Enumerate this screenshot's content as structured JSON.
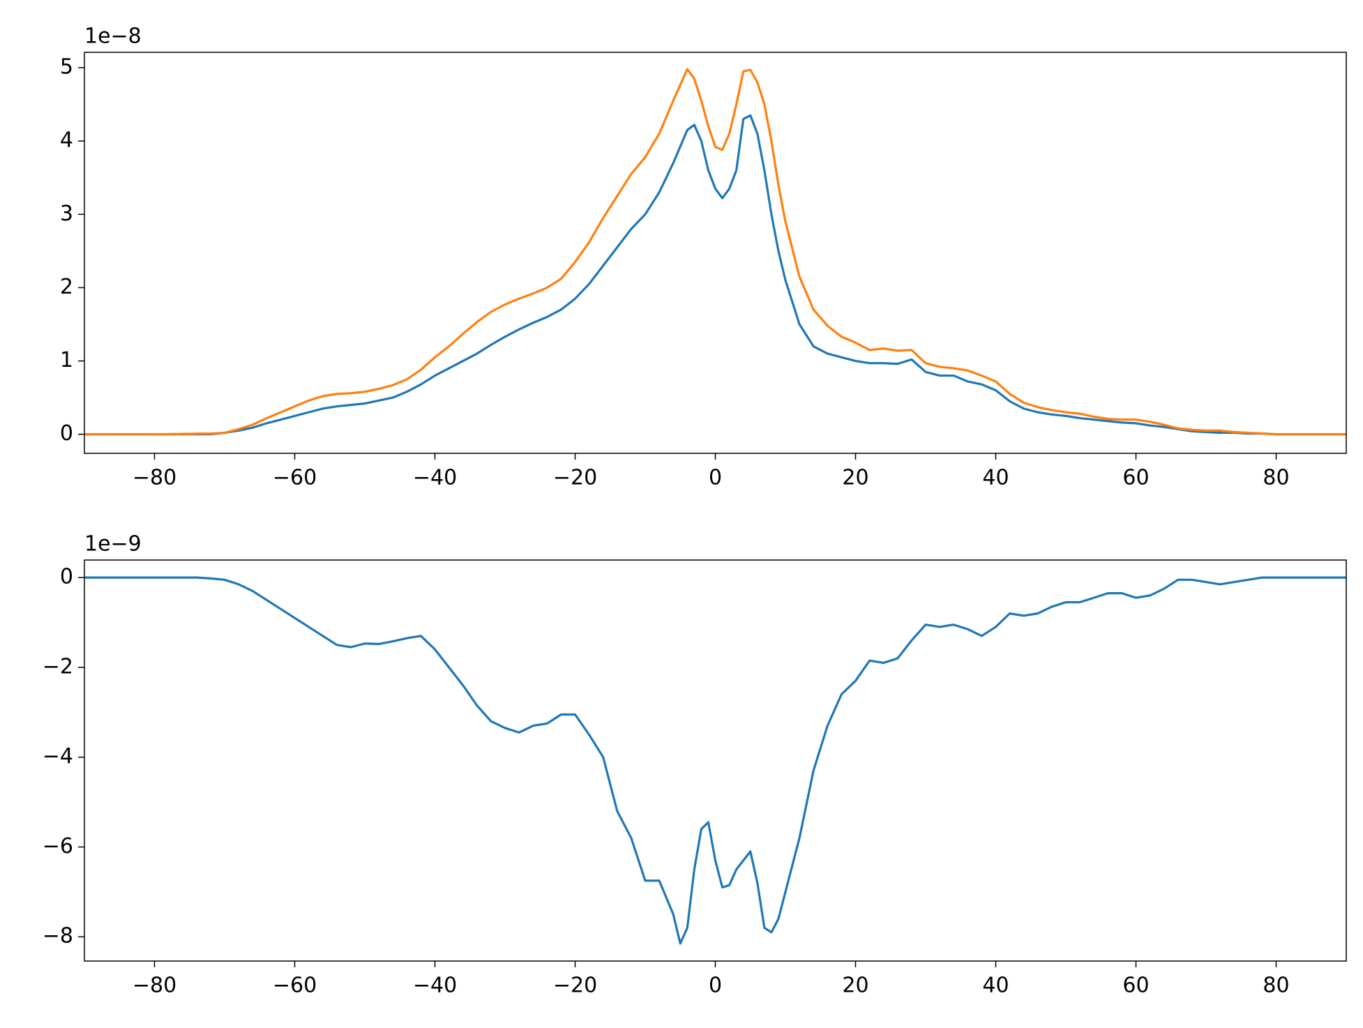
{
  "chart_data": [
    {
      "type": "line",
      "y_offset_label": "1e−8",
      "x": [
        -90,
        -80,
        -72,
        -70,
        -68,
        -66,
        -64,
        -62,
        -60,
        -58,
        -56,
        -54,
        -52,
        -50,
        -48,
        -46,
        -44,
        -42,
        -40,
        -38,
        -36,
        -34,
        -32,
        -30,
        -28,
        -26,
        -24,
        -22,
        -20,
        -18,
        -16,
        -14,
        -12,
        -10,
        -8,
        -6,
        -4,
        -3,
        -2,
        -1,
        0,
        1,
        2,
        3,
        4,
        5,
        6,
        7,
        8,
        9,
        10,
        12,
        14,
        16,
        18,
        20,
        22,
        24,
        26,
        28,
        30,
        32,
        34,
        36,
        38,
        40,
        42,
        44,
        46,
        48,
        50,
        52,
        54,
        56,
        58,
        60,
        62,
        64,
        66,
        68,
        70,
        72,
        74,
        76,
        78,
        80,
        90
      ],
      "series": [
        {
          "color": "#1f77b4",
          "values": [
            0,
            0,
            0,
            0.02,
            0.05,
            0.09,
            0.15,
            0.2,
            0.25,
            0.3,
            0.35,
            0.38,
            0.4,
            0.42,
            0.46,
            0.5,
            0.58,
            0.68,
            0.8,
            0.9,
            1.0,
            1.1,
            1.22,
            1.33,
            1.43,
            1.52,
            1.6,
            1.7,
            1.85,
            2.05,
            2.3,
            2.55,
            2.8,
            3.0,
            3.3,
            3.7,
            4.15,
            4.22,
            4.0,
            3.6,
            3.35,
            3.22,
            3.35,
            3.6,
            4.3,
            4.35,
            4.1,
            3.6,
            3.0,
            2.5,
            2.1,
            1.5,
            1.2,
            1.1,
            1.05,
            1.0,
            0.97,
            0.97,
            0.96,
            1.02,
            0.85,
            0.8,
            0.8,
            0.72,
            0.68,
            0.6,
            0.45,
            0.35,
            0.3,
            0.27,
            0.25,
            0.22,
            0.2,
            0.18,
            0.16,
            0.15,
            0.12,
            0.1,
            0.07,
            0.04,
            0.03,
            0.02,
            0.02,
            0.01,
            0.01,
            0,
            0
          ]
        },
        {
          "color": "#ff7f0e",
          "values": [
            0,
            0,
            0.01,
            0.02,
            0.07,
            0.13,
            0.22,
            0.3,
            0.38,
            0.46,
            0.52,
            0.55,
            0.56,
            0.58,
            0.62,
            0.67,
            0.75,
            0.88,
            1.05,
            1.2,
            1.37,
            1.53,
            1.67,
            1.77,
            1.85,
            1.92,
            2.0,
            2.12,
            2.35,
            2.62,
            2.95,
            3.25,
            3.55,
            3.78,
            4.1,
            4.55,
            4.98,
            4.85,
            4.55,
            4.2,
            3.92,
            3.88,
            4.1,
            4.5,
            4.95,
            4.97,
            4.8,
            4.5,
            4.0,
            3.4,
            2.9,
            2.15,
            1.7,
            1.48,
            1.33,
            1.25,
            1.15,
            1.17,
            1.14,
            1.15,
            0.97,
            0.92,
            0.9,
            0.87,
            0.8,
            0.72,
            0.55,
            0.43,
            0.37,
            0.33,
            0.3,
            0.28,
            0.24,
            0.21,
            0.2,
            0.2,
            0.17,
            0.13,
            0.08,
            0.06,
            0.05,
            0.05,
            0.03,
            0.02,
            0.01,
            0,
            0
          ]
        }
      ],
      "xlim": [
        -90,
        90
      ],
      "xticks": [
        {
          "value": -80,
          "label": "−80"
        },
        {
          "value": -60,
          "label": "−60"
        },
        {
          "value": -40,
          "label": "−40"
        },
        {
          "value": -20,
          "label": "−20"
        },
        0,
        20,
        40,
        60,
        80
      ],
      "ylim": [
        -0.26,
        5.21
      ],
      "yticks": [
        0,
        1,
        2,
        3,
        4,
        5
      ]
    },
    {
      "type": "line",
      "y_offset_label": "1e−9",
      "x": [
        -90,
        -80,
        -74,
        -72,
        -70,
        -68,
        -66,
        -64,
        -62,
        -60,
        -58,
        -56,
        -54,
        -52,
        -50,
        -48,
        -46,
        -44,
        -42,
        -40,
        -38,
        -36,
        -34,
        -32,
        -30,
        -28,
        -26,
        -24,
        -22,
        -20,
        -18,
        -16,
        -14,
        -12,
        -10,
        -8,
        -6,
        -5,
        -4,
        -3,
        -2,
        -1,
        0,
        1,
        2,
        3,
        4,
        5,
        6,
        7,
        8,
        9,
        10,
        12,
        14,
        16,
        18,
        20,
        22,
        24,
        26,
        28,
        30,
        32,
        34,
        36,
        38,
        40,
        42,
        44,
        46,
        48,
        50,
        52,
        54,
        56,
        58,
        60,
        62,
        64,
        66,
        68,
        70,
        72,
        74,
        76,
        78,
        80,
        90
      ],
      "series": [
        {
          "color": "#1f77b4",
          "values": [
            0,
            0,
            0,
            -0.02,
            -0.05,
            -0.15,
            -0.3,
            -0.5,
            -0.7,
            -0.9,
            -1.1,
            -1.3,
            -1.5,
            -1.55,
            -1.47,
            -1.48,
            -1.42,
            -1.35,
            -1.3,
            -1.6,
            -2.0,
            -2.4,
            -2.85,
            -3.2,
            -3.35,
            -3.45,
            -3.3,
            -3.25,
            -3.05,
            -3.05,
            -3.5,
            -4.0,
            -5.2,
            -5.8,
            -6.75,
            -6.75,
            -7.5,
            -8.15,
            -7.8,
            -6.5,
            -5.6,
            -5.45,
            -6.3,
            -6.9,
            -6.85,
            -6.5,
            -6.3,
            -6.1,
            -6.8,
            -7.8,
            -7.9,
            -7.6,
            -7.0,
            -5.8,
            -4.3,
            -3.3,
            -2.6,
            -2.3,
            -1.85,
            -1.9,
            -1.8,
            -1.4,
            -1.05,
            -1.1,
            -1.05,
            -1.15,
            -1.3,
            -1.1,
            -0.8,
            -0.85,
            -0.8,
            -0.65,
            -0.55,
            -0.55,
            -0.45,
            -0.35,
            -0.35,
            -0.45,
            -0.4,
            -0.25,
            -0.05,
            -0.05,
            -0.1,
            -0.15,
            -0.1,
            -0.05,
            0,
            0,
            0
          ]
        }
      ],
      "xlim": [
        -90,
        90
      ],
      "xticks": [
        {
          "value": -80,
          "label": "−80"
        },
        {
          "value": -60,
          "label": "−60"
        },
        {
          "value": -40,
          "label": "−40"
        },
        {
          "value": -20,
          "label": "−20"
        },
        0,
        20,
        40,
        60,
        80
      ],
      "ylim": [
        -8.54,
        0.39
      ],
      "yticks": [
        {
          "value": -8,
          "label": "−8"
        },
        {
          "value": -6,
          "label": "−6"
        },
        {
          "value": -4,
          "label": "−4"
        },
        {
          "value": -2,
          "label": "−2"
        },
        0
      ]
    }
  ]
}
